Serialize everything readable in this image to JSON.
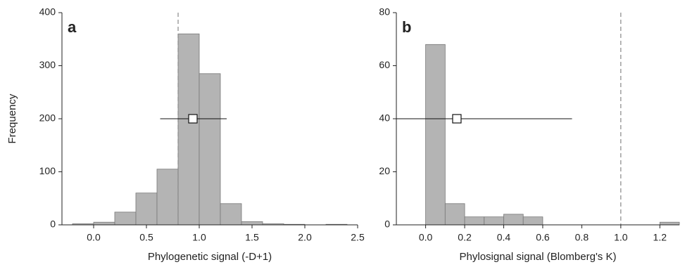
{
  "chart_data": [
    {
      "type": "histogram",
      "panel_label": "a",
      "xlabel": "Phylogenetic signal (-D+1)",
      "ylabel": "Frequency",
      "bins": [
        -0.2,
        0,
        0.2,
        0.4,
        0.6,
        0.8,
        1.0,
        1.2,
        1.4,
        1.6,
        1.8,
        2.0,
        2.2,
        2.4
      ],
      "counts": [
        2,
        5,
        24,
        60,
        105,
        360,
        285,
        40,
        6,
        2,
        1,
        0,
        1
      ],
      "color": "#b4b4b4",
      "xlim": [
        -0.3,
        2.5
      ],
      "ylim": [
        0,
        400
      ],
      "xticks": [
        {
          "value": 0,
          "label": "0.0"
        },
        0.5,
        {
          "value": 1,
          "label": "1.0"
        },
        1.5,
        {
          "value": 2,
          "label": "2.0"
        },
        2.5
      ],
      "yticks": [
        0,
        100,
        200,
        300,
        400
      ],
      "vline": 0.8,
      "mean": {
        "x": 0.94,
        "y": 200,
        "x_low": 0.63,
        "x_high": 1.26
      }
    },
    {
      "type": "histogram",
      "panel_label": "b",
      "xlabel": "Phylosignal signal (Blomberg's K)",
      "bins": [
        0,
        0.1,
        0.2,
        0.3,
        0.4,
        0.5,
        0.6,
        0.7,
        0.8,
        0.9,
        1.0,
        1.1,
        1.2,
        1.3
      ],
      "counts": [
        68,
        8,
        3,
        3,
        4,
        3,
        0,
        0,
        0,
        0,
        0,
        0,
        1
      ],
      "color": "#b4b4b4",
      "xlim": [
        -0.15,
        1.3
      ],
      "ylim": [
        0,
        80
      ],
      "xticks": [
        {
          "value": 0,
          "label": "0.0"
        },
        0.2,
        0.4,
        0.6,
        0.8,
        {
          "value": 1,
          "label": "1.0"
        },
        1.2
      ],
      "yticks": [
        0,
        20,
        40,
        60,
        80
      ],
      "vline": 1.0,
      "mean": {
        "x": 0.16,
        "y": 40,
        "x_low": -0.15,
        "x_high": 0.75
      }
    }
  ]
}
